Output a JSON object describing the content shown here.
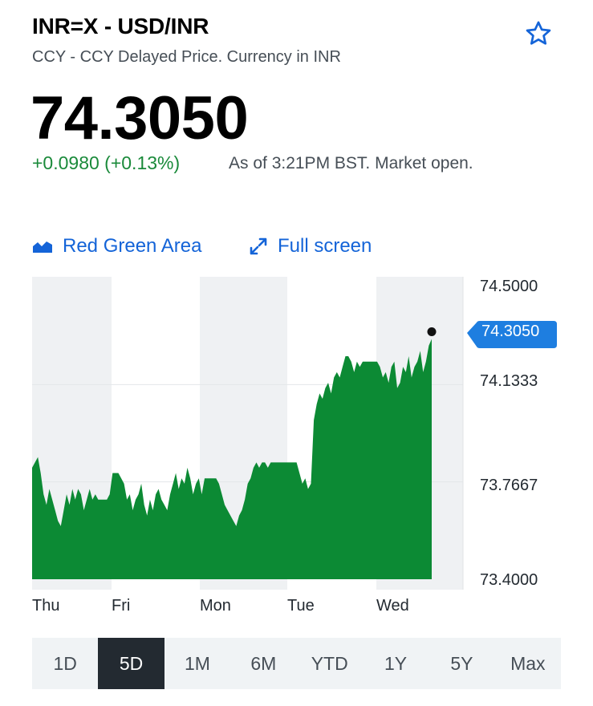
{
  "header": {
    "title": "INR=X - USD/INR",
    "subtitle": "CCY - CCY Delayed Price. Currency in INR"
  },
  "quote": {
    "price": "74.3050",
    "change": "+0.0980 (+0.13%)",
    "as_of": "As of 3:21PM BST. Market open."
  },
  "toolbar": {
    "chart_type_label": "Red Green Area",
    "fullscreen_label": "Full screen"
  },
  "colors": {
    "area_fill": "#0c8a34",
    "accent": "#1464d8",
    "positive": "#1a8a3a"
  },
  "chart_data": {
    "type": "area",
    "y_ticks": [
      "74.5000",
      "74.1333",
      "73.7667",
      "73.4000"
    ],
    "ylim": [
      73.4,
      74.5
    ],
    "current_label": "74.3050",
    "x_ticks": [
      "Thu",
      "Fri",
      "Mon",
      "Tue",
      "Wed"
    ],
    "series": [
      {
        "values": [
          73.82,
          73.84,
          73.86,
          73.8,
          73.72,
          73.68,
          73.74,
          73.7,
          73.66,
          73.62,
          73.6,
          73.66,
          73.72,
          73.68,
          73.74,
          73.7,
          73.74,
          73.72,
          73.66,
          73.7,
          73.74,
          73.7,
          73.72,
          73.7,
          73.7,
          73.7,
          73.7,
          73.72,
          73.8,
          73.8,
          73.8,
          73.78,
          73.76,
          73.7,
          73.72,
          73.66,
          73.7,
          73.72,
          73.76,
          73.68,
          73.64,
          73.7,
          73.66,
          73.72,
          73.74,
          73.7,
          73.68,
          73.66,
          73.72,
          73.76,
          73.8,
          73.74,
          73.78,
          73.76,
          73.82,
          73.78,
          73.72,
          73.76,
          73.78,
          73.72,
          73.78,
          73.78,
          73.78,
          73.78,
          73.78,
          73.76,
          73.72,
          73.68,
          73.66,
          73.64,
          73.62,
          73.6,
          73.64,
          73.66,
          73.7,
          73.76,
          73.78,
          73.82,
          73.84,
          73.82,
          73.84,
          73.84,
          73.82,
          73.84,
          73.84,
          73.84,
          73.84,
          73.84,
          73.84,
          73.84,
          73.84,
          73.84,
          73.84,
          73.8,
          73.76,
          73.78,
          73.74,
          73.76,
          74.0,
          74.06,
          74.1,
          74.08,
          74.12,
          74.14,
          74.1,
          74.16,
          74.18,
          74.16,
          74.2,
          74.24,
          74.24,
          74.22,
          74.18,
          74.22,
          74.2,
          74.22,
          74.22,
          74.22,
          74.22,
          74.22,
          74.22,
          74.2,
          74.16,
          74.18,
          74.14,
          74.2,
          74.22,
          74.12,
          74.14,
          74.2,
          74.18,
          74.24,
          74.16,
          74.2,
          74.22,
          74.26,
          74.18,
          74.22,
          74.28,
          74.305
        ]
      }
    ],
    "grid": true
  },
  "ranges": [
    {
      "label": "1D",
      "active": false
    },
    {
      "label": "5D",
      "active": true
    },
    {
      "label": "1M",
      "active": false
    },
    {
      "label": "6M",
      "active": false
    },
    {
      "label": "YTD",
      "active": false
    },
    {
      "label": "1Y",
      "active": false
    },
    {
      "label": "5Y",
      "active": false
    },
    {
      "label": "Max",
      "active": false
    }
  ]
}
